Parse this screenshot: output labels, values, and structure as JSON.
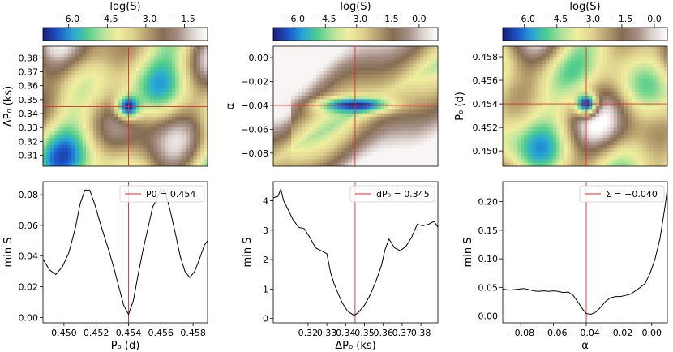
{
  "colors": {
    "marker": "#e8262a",
    "curve": "#000000",
    "frame": "#000000",
    "colormap": [
      "#1a1d78",
      "#1d55c8",
      "#27a7d7",
      "#52cf8a",
      "#b4e39a",
      "#f1ee9f",
      "#ddd18f",
      "#b59d6c",
      "#846d52",
      "#a58e84",
      "#ddd3cf",
      "#ffffff"
    ]
  },
  "chart_data": [
    {
      "type": "heatmap",
      "colorbar": {
        "title": "log(S)",
        "ticks": [
          "−6.0",
          "−4.5",
          "−3.0",
          "−1.5"
        ],
        "range": [
          -7.0,
          -0.6
        ]
      },
      "xlim": [
        0.4487,
        0.4589
      ],
      "ylim": [
        0.3022,
        0.3883
      ],
      "ylabel": "ΔP₀ (ks)",
      "yticks": [
        "0.31",
        "0.32",
        "0.33",
        "0.34",
        "0.35",
        "0.36",
        "0.37",
        "0.38"
      ],
      "crosshair": {
        "x": 0.454,
        "y": 0.345
      },
      "minimum": {
        "x": 0.454,
        "y": 0.345,
        "logS": -6.9
      }
    },
    {
      "type": "line",
      "xlabel": "P₀ (d)",
      "ylabel": "min S",
      "xlim": [
        0.4487,
        0.4589
      ],
      "ylim": [
        -0.0035,
        0.0885
      ],
      "xticks": [
        "0.450",
        "0.452",
        "0.454",
        "0.456",
        "0.458"
      ],
      "yticks": [
        "0.00",
        "0.02",
        "0.04",
        "0.06",
        "0.08"
      ],
      "marker_x": 0.454,
      "legend": "P0 = 0.454",
      "legend_position": "upper right",
      "x": [
        0.4487,
        0.4491,
        0.4495,
        0.4499,
        0.4503,
        0.4507,
        0.451,
        0.4513,
        0.4516,
        0.4519,
        0.4522,
        0.4525,
        0.4528,
        0.4531,
        0.4534,
        0.4537,
        0.454,
        0.4543,
        0.4546,
        0.4549,
        0.4552,
        0.4555,
        0.4558,
        0.456,
        0.4563,
        0.4566,
        0.4569,
        0.4572,
        0.4575,
        0.4578,
        0.4581,
        0.4584,
        0.4587,
        0.4589
      ],
      "y": [
        0.038,
        0.031,
        0.028,
        0.033,
        0.042,
        0.058,
        0.074,
        0.083,
        0.083,
        0.074,
        0.063,
        0.053,
        0.043,
        0.032,
        0.02,
        0.008,
        0.002,
        0.011,
        0.028,
        0.044,
        0.058,
        0.072,
        0.078,
        0.084,
        0.081,
        0.069,
        0.055,
        0.04,
        0.03,
        0.026,
        0.03,
        0.038,
        0.047,
        0.05
      ]
    },
    {
      "type": "heatmap",
      "colorbar": {
        "title": "log(S)",
        "ticks": [
          "−6.0",
          "−4.5",
          "−3.0",
          "−1.5",
          "0.0"
        ],
        "range": [
          -7.0,
          0.9
        ]
      },
      "xlim": [
        0.3015,
        0.389
      ],
      "ylim": [
        -0.091,
        0.0095
      ],
      "ylabel": "α",
      "yticks": [
        "0.00",
        "−0.02",
        "−0.04",
        "−0.06",
        "−0.08"
      ],
      "crosshair": {
        "x": 0.345,
        "y": -0.04
      },
      "minimum": {
        "x": 0.345,
        "y": -0.04,
        "logS": -6.8
      }
    },
    {
      "type": "line",
      "xlabel": "ΔP₀ (ks)",
      "ylabel": "min S",
      "xlim": [
        0.3015,
        0.389
      ],
      "ylim": [
        -0.15,
        4.65
      ],
      "xticks": [
        "0.32",
        "0.33",
        "0.34",
        "0.35",
        "0.36",
        "0.37",
        "0.38"
      ],
      "yticks": [
        "0",
        "1",
        "2",
        "3",
        "4"
      ],
      "marker_x": 0.345,
      "legend": "dP₀ = 0.345",
      "legend_position": "upper right",
      "x": [
        0.3015,
        0.304,
        0.3055,
        0.307,
        0.309,
        0.312,
        0.315,
        0.318,
        0.321,
        0.324,
        0.327,
        0.33,
        0.332,
        0.334,
        0.336,
        0.338,
        0.341,
        0.344,
        0.345,
        0.347,
        0.35,
        0.353,
        0.356,
        0.359,
        0.361,
        0.363,
        0.366,
        0.369,
        0.372,
        0.375,
        0.378,
        0.381,
        0.384,
        0.387,
        0.389
      ],
      "y": [
        4.1,
        4.15,
        4.4,
        4.0,
        3.75,
        3.35,
        3.1,
        3.05,
        2.75,
        2.4,
        2.3,
        2.2,
        1.55,
        1.15,
        0.85,
        0.55,
        0.25,
        0.12,
        0.12,
        0.22,
        0.45,
        0.8,
        1.25,
        1.8,
        2.35,
        2.7,
        2.4,
        2.3,
        2.45,
        2.75,
        3.2,
        3.15,
        3.2,
        3.3,
        3.1
      ]
    },
    {
      "type": "heatmap",
      "colorbar": {
        "title": "log(S)",
        "ticks": [
          "−6.0",
          "−4.5",
          "−3.0",
          "−1.5",
          "0.0"
        ],
        "range": [
          -7.0,
          0.6
        ]
      },
      "xlim": [
        -0.091,
        0.0095
      ],
      "ylim": [
        0.4487,
        0.4589
      ],
      "ylabel": "P₀ (d)",
      "yticks": [
        "0.450",
        "0.452",
        "0.454",
        "0.456",
        "0.458"
      ],
      "crosshair": {
        "x": -0.04,
        "y": 0.454
      },
      "minimum": {
        "x": -0.04,
        "y": 0.454,
        "logS": -6.8
      }
    },
    {
      "type": "line",
      "xlabel": "α",
      "ylabel": "min S",
      "xlim": [
        -0.091,
        0.0095
      ],
      "ylim": [
        -0.012,
        0.235
      ],
      "xticks": [
        "−0.08",
        "−0.06",
        "−0.04",
        "−0.02",
        "0.00"
      ],
      "yticks": [
        "0.00",
        "0.05",
        "0.10",
        "0.15",
        "0.20"
      ],
      "marker_x": -0.04,
      "legend": "Σ = −0.040",
      "legend_position": "upper right",
      "x": [
        -0.091,
        -0.087,
        -0.084,
        -0.081,
        -0.078,
        -0.075,
        -0.072,
        -0.069,
        -0.066,
        -0.063,
        -0.06,
        -0.057,
        -0.054,
        -0.051,
        -0.048,
        -0.045,
        -0.042,
        -0.04,
        -0.037,
        -0.034,
        -0.031,
        -0.028,
        -0.025,
        -0.022,
        -0.019,
        -0.016,
        -0.013,
        -0.01,
        -0.007,
        -0.004,
        -0.001,
        0.002,
        0.005,
        0.008,
        0.0095
      ],
      "y": [
        0.047,
        0.045,
        0.046,
        0.047,
        0.048,
        0.046,
        0.044,
        0.043,
        0.044,
        0.043,
        0.044,
        0.043,
        0.041,
        0.042,
        0.036,
        0.024,
        0.011,
        0.004,
        0.003,
        0.007,
        0.016,
        0.026,
        0.032,
        0.034,
        0.034,
        0.036,
        0.038,
        0.044,
        0.05,
        0.057,
        0.075,
        0.1,
        0.135,
        0.19,
        0.222
      ]
    }
  ]
}
